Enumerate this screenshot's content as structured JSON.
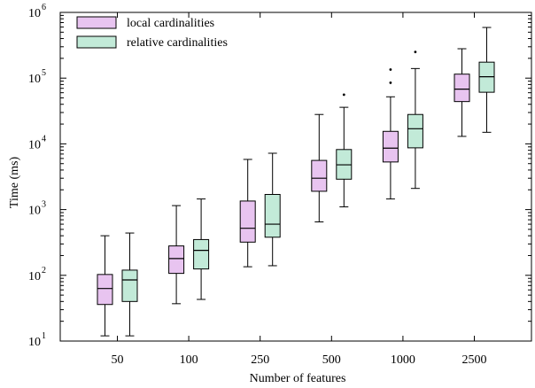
{
  "chart_data": {
    "type": "boxplot",
    "title": "",
    "xlabel": "Number of features",
    "ylabel": "Time (ms)",
    "yscale": "log",
    "ylim": [
      10,
      1000000
    ],
    "y_ticks": [
      {
        "value": 10,
        "base": "10",
        "exp": "1"
      },
      {
        "value": 100,
        "base": "10",
        "exp": "2"
      },
      {
        "value": 1000,
        "base": "10",
        "exp": "3"
      },
      {
        "value": 10000,
        "base": "10",
        "exp": "4"
      },
      {
        "value": 100000,
        "base": "10",
        "exp": "5"
      },
      {
        "value": 1000000,
        "base": "10",
        "exp": "6"
      }
    ],
    "categories": [
      "50",
      "100",
      "250",
      "500",
      "1000",
      "2500"
    ],
    "legend_position": "top-left",
    "grid": false,
    "series": [
      {
        "name": "local cardinalities",
        "color": "#e8c4f0",
        "boxes": [
          {
            "min": 12,
            "q1": 36,
            "median": 63,
            "q3": 103,
            "max": 400,
            "outliers": []
          },
          {
            "min": 37,
            "q1": 107,
            "median": 180,
            "q3": 280,
            "max": 1150,
            "outliers": []
          },
          {
            "min": 135,
            "q1": 320,
            "median": 520,
            "q3": 1350,
            "max": 5800,
            "outliers": []
          },
          {
            "min": 650,
            "q1": 1900,
            "median": 3000,
            "q3": 5600,
            "max": 28000,
            "outliers": []
          },
          {
            "min": 1450,
            "q1": 5300,
            "median": 8600,
            "q3": 15500,
            "max": 52000,
            "outliers": [
              85000,
              135000
            ]
          },
          {
            "min": 13000,
            "q1": 44000,
            "median": 68000,
            "q3": 115000,
            "max": 280000,
            "outliers": []
          }
        ]
      },
      {
        "name": "relative cardinalities",
        "color": "#c2ead8",
        "boxes": [
          {
            "min": 12,
            "q1": 40,
            "median": 85,
            "q3": 120,
            "max": 440,
            "outliers": []
          },
          {
            "min": 43,
            "q1": 125,
            "median": 240,
            "q3": 350,
            "max": 1450,
            "outliers": []
          },
          {
            "min": 140,
            "q1": 380,
            "median": 600,
            "q3": 1700,
            "max": 7200,
            "outliers": []
          },
          {
            "min": 1100,
            "q1": 2900,
            "median": 4800,
            "q3": 8200,
            "max": 36000,
            "outliers": [
              56000
            ]
          },
          {
            "min": 2100,
            "q1": 8700,
            "median": 17000,
            "q3": 28000,
            "max": 140000,
            "outliers": [
              250000
            ]
          },
          {
            "min": 15000,
            "q1": 61000,
            "median": 105000,
            "q3": 175000,
            "max": 590000,
            "outliers": []
          }
        ]
      }
    ]
  }
}
